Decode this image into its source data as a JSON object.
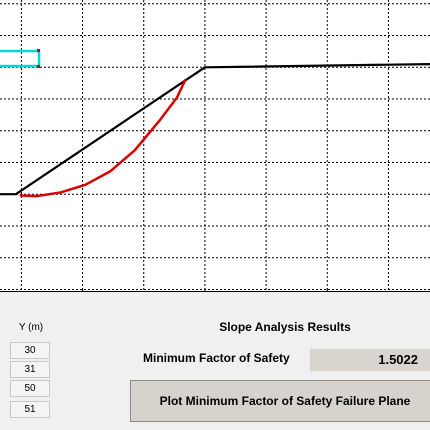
{
  "chart_data": {
    "type": "line",
    "x_ticks": [
      60,
      80,
      100
    ],
    "xlim": [
      46.5,
      116.8
    ],
    "ylim": [
      24.6,
      70.6
    ],
    "grid": true,
    "series": [
      {
        "role": "slope-profile",
        "color": "#000000",
        "x": [
          46.5,
          49.1,
          80,
          116.8
        ],
        "y": [
          40,
          40,
          60,
          60.5
        ]
      },
      {
        "role": "failure-surface",
        "color": "#dd0000",
        "x": [
          49.9,
          52.5,
          56.5,
          60.5,
          64.5,
          68.5,
          72.5,
          75.4,
          76.8
        ],
        "y": [
          39.8,
          39.7,
          40.3,
          41.5,
          43.6,
          46.9,
          51.5,
          55.2,
          58
        ]
      }
    ]
  },
  "panel": {
    "y_column_header": "Y (m)",
    "y_values": [
      "30",
      "31",
      "50",
      "51"
    ],
    "results_title": "Slope Analysis Results",
    "fos_label": "Minimum Factor of Safety",
    "fos_value": "1.5022",
    "plot_button_label": "Plot Minimum Factor of Safety Failure Plane"
  },
  "colors": {
    "profile": "#000000",
    "failure_surface": "#dd0000",
    "marker": "#00d8e0",
    "marker_corner": "#cc0000"
  }
}
